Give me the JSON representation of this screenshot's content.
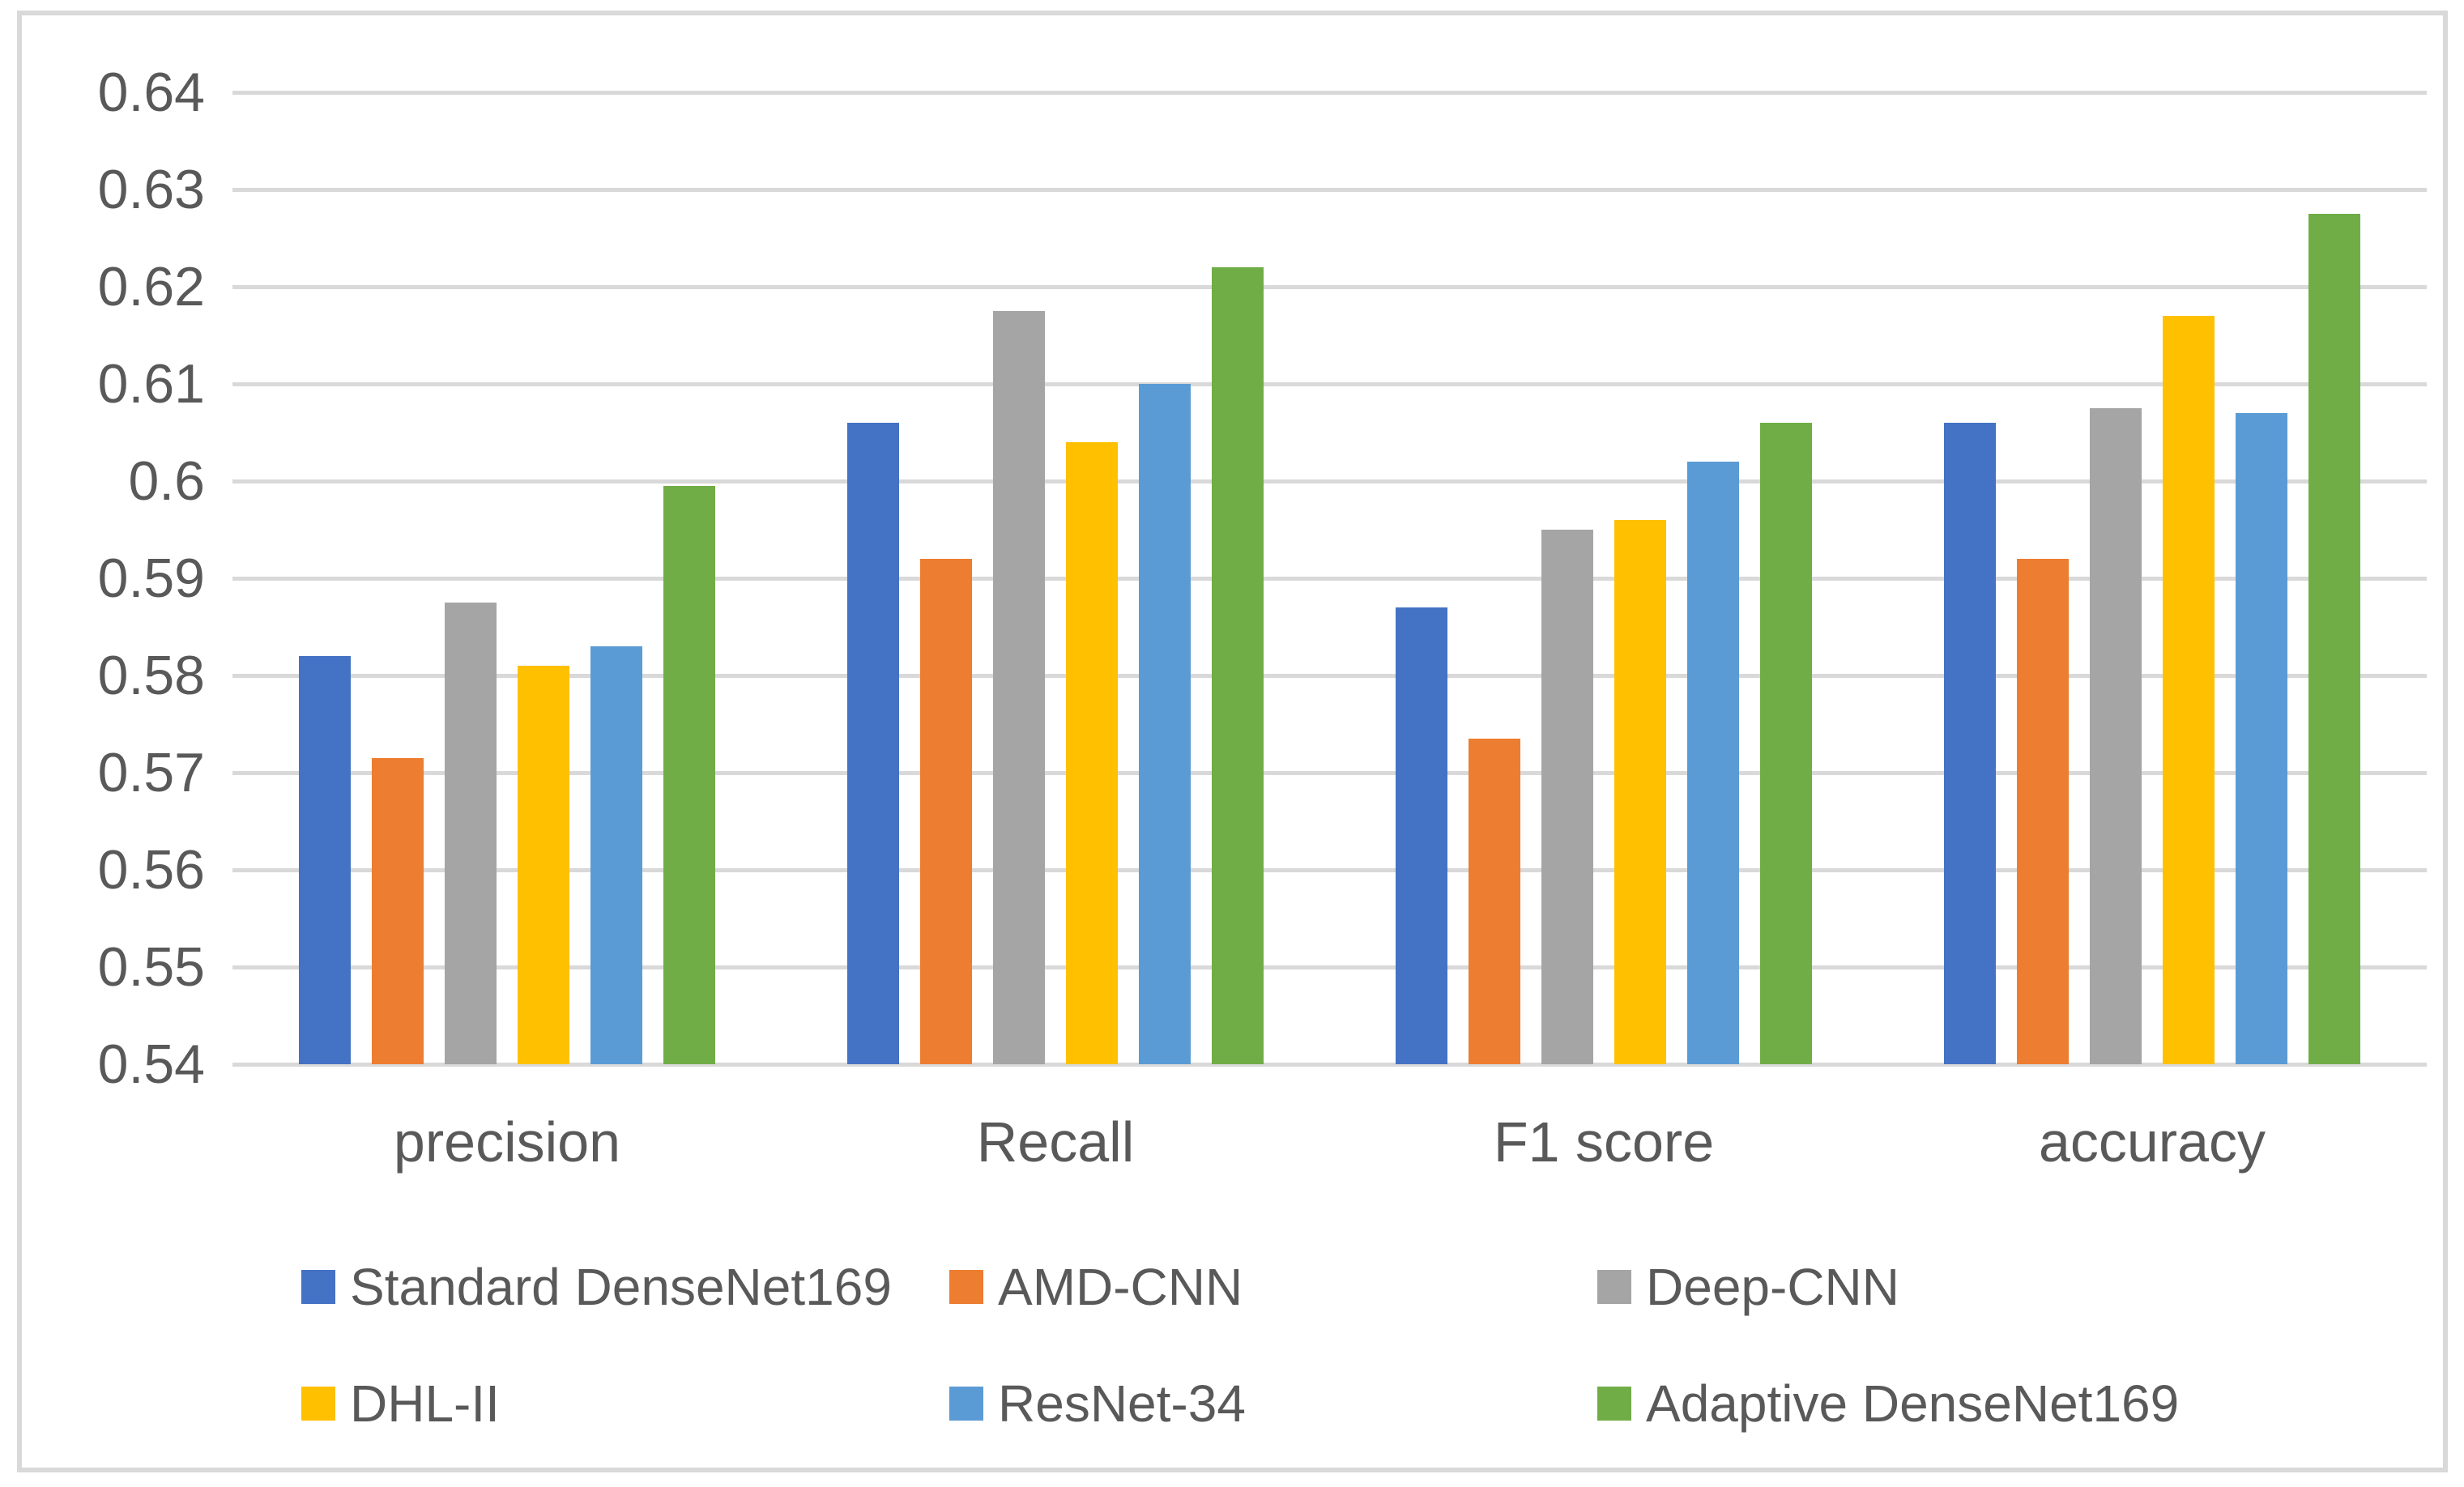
{
  "chart_data": {
    "type": "bar",
    "title": "",
    "xlabel": "",
    "ylabel": "",
    "categories": [
      "precision",
      "Recall",
      "F1 score",
      "accuracy"
    ],
    "series": [
      {
        "name": "Standard DenseNet169",
        "color": "#4472C4",
        "values": [
          0.582,
          0.606,
          0.587,
          0.606
        ]
      },
      {
        "name": "AMD-CNN",
        "color": "#ED7D31",
        "values": [
          0.5715,
          0.592,
          0.5735,
          0.592
        ]
      },
      {
        "name": "Deep-CNN",
        "color": "#A5A5A5",
        "values": [
          0.5875,
          0.6175,
          0.595,
          0.6075
        ]
      },
      {
        "name": "DHL-II",
        "color": "#FFC000",
        "values": [
          0.581,
          0.604,
          0.596,
          0.617
        ]
      },
      {
        "name": "ResNet-34",
        "color": "#5B9BD5",
        "values": [
          0.583,
          0.61,
          0.602,
          0.607
        ]
      },
      {
        "name": "Adaptive DenseNet169",
        "color": "#70AD47",
        "values": [
          0.5995,
          0.622,
          0.606,
          0.6275
        ]
      }
    ],
    "ylim": [
      0.54,
      0.64
    ],
    "ytick_step": 0.01,
    "ytick_labels": [
      "0.64",
      "0.63",
      "0.62",
      "0.61",
      "0.6",
      "0.59",
      "0.58",
      "0.57",
      "0.56",
      "0.55",
      "0.54"
    ],
    "grid": true,
    "legend_position": "bottom",
    "legend_rows": [
      [
        "Standard DenseNet169",
        "AMD-CNN",
        "Deep-CNN"
      ],
      [
        "DHL-II",
        "ResNet-34",
        "Adaptive DenseNet169"
      ]
    ]
  },
  "colors": {
    "frame_border": "#D9D9D9",
    "gridline": "#D9D9D9",
    "text": "#595959",
    "background": "#FFFFFF"
  }
}
